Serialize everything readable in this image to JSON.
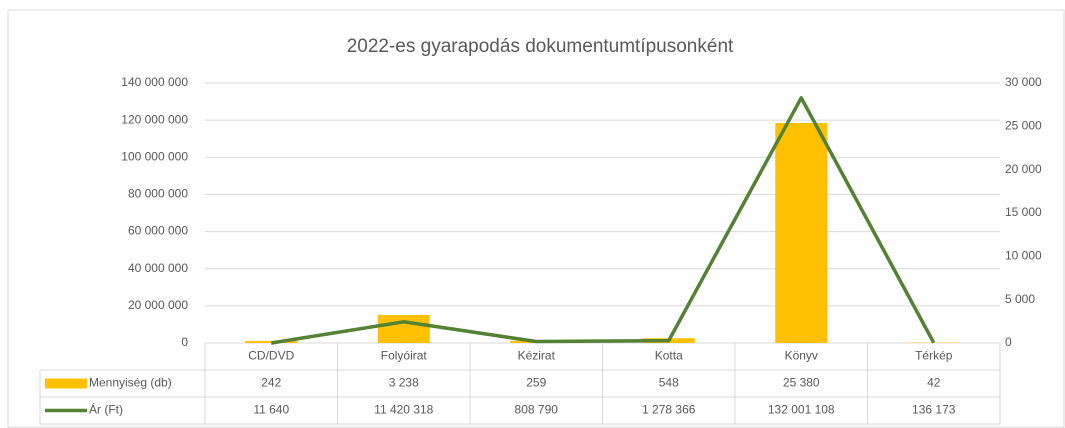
{
  "chart_data": {
    "type": "combo",
    "title": "2022-es gyarapodás dokumentumtípusonként",
    "categories": [
      "CD/DVD",
      "Folyóirat",
      "Kézirat",
      "Kotta",
      "Könyv",
      "Térkép"
    ],
    "series": [
      {
        "name": "Mennyiség (db)",
        "type": "bar",
        "axis": "y2",
        "color": "#ffc000",
        "values": [
          242,
          3238,
          259,
          548,
          25380,
          42
        ],
        "value_labels": [
          "242",
          "3 238",
          "259",
          "548",
          "25 380",
          "42"
        ]
      },
      {
        "name": "Ár (Ft)",
        "type": "line",
        "axis": "y",
        "color": "#548235",
        "values": [
          11640,
          11420318,
          808790,
          1278366,
          132001108,
          136173
        ],
        "value_labels": [
          "11 640",
          "11 420 318",
          "808 790",
          "1 278 366",
          "132 001 108",
          "136 173"
        ]
      }
    ],
    "ylim": [
      0,
      140000000
    ],
    "yticks": [
      0,
      {
        "value": 20000000,
        "label": "20 000 000"
      },
      {
        "value": 40000000,
        "label": "40 000 000"
      },
      {
        "value": 60000000,
        "label": "60 000 000"
      },
      {
        "value": 80000000,
        "label": "80 000 000"
      },
      {
        "value": 100000000,
        "label": "100 000 000"
      },
      {
        "value": 120000000,
        "label": "120 000 000"
      },
      {
        "value": 140000000,
        "label": "140 000 000"
      }
    ],
    "y2lim": [
      0,
      30000
    ],
    "y2ticks": [
      0,
      {
        "value": 5000,
        "label": "5 000"
      },
      {
        "value": 10000,
        "label": "10 000"
      },
      {
        "value": 15000,
        "label": "15 000"
      },
      {
        "value": 20000,
        "label": "20 000"
      },
      {
        "value": 25000,
        "label": "25 000"
      },
      {
        "value": 30000,
        "label": "30 000"
      }
    ],
    "grid": true
  }
}
